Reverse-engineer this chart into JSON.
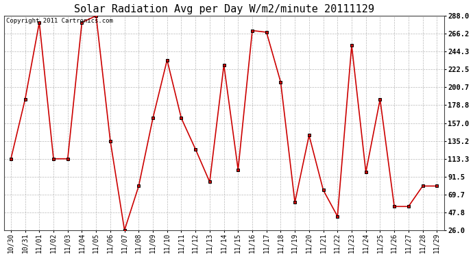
{
  "title": "Solar Radiation Avg per Day W/m2/minute 20111129",
  "copyright": "Copyright 2011 Cartronics.com",
  "x_labels": [
    "10/30",
    "10/31",
    "11/01",
    "11/02",
    "11/03",
    "11/04",
    "11/05",
    "11/06",
    "11/07",
    "11/08",
    "11/09",
    "11/10",
    "11/11",
    "11/12",
    "11/13",
    "11/14",
    "11/15",
    "11/16",
    "11/17",
    "11/18",
    "11/19",
    "11/20",
    "11/21",
    "11/22",
    "11/23",
    "11/24",
    "11/25",
    "11/26",
    "11/27",
    "11/28",
    "11/29"
  ],
  "y_values": [
    113.3,
    186.0,
    280.0,
    113.3,
    113.3,
    280.0,
    288.0,
    135.2,
    26.0,
    80.0,
    163.0,
    234.0,
    163.0,
    125.0,
    85.0,
    228.0,
    100.0,
    270.0,
    268.0,
    207.0,
    60.0,
    142.0,
    75.0,
    43.0,
    252.0,
    97.0,
    186.0,
    55.0,
    55.0,
    80.0,
    80.0
  ],
  "line_color": "#cc0000",
  "marker_color": "#000000",
  "bg_color": "#ffffff",
  "plot_bg_color": "#ffffff",
  "grid_color": "#b0b0b0",
  "ylim_min": 26.0,
  "ylim_max": 288.0,
  "ytick_values": [
    26.0,
    47.8,
    69.7,
    91.5,
    113.3,
    135.2,
    157.0,
    178.8,
    200.7,
    222.5,
    244.3,
    266.2,
    288.0
  ],
  "ytick_labels": [
    "26.0",
    "47.8",
    "69.7",
    "91.5",
    "113.3",
    "135.2",
    "157.0",
    "178.8",
    "200.7",
    "222.5",
    "244.3",
    "266.2",
    "288.0"
  ],
  "title_fontsize": 11,
  "copyright_fontsize": 6.5,
  "tick_fontsize": 7,
  "ytick_fontsize": 7.5
}
